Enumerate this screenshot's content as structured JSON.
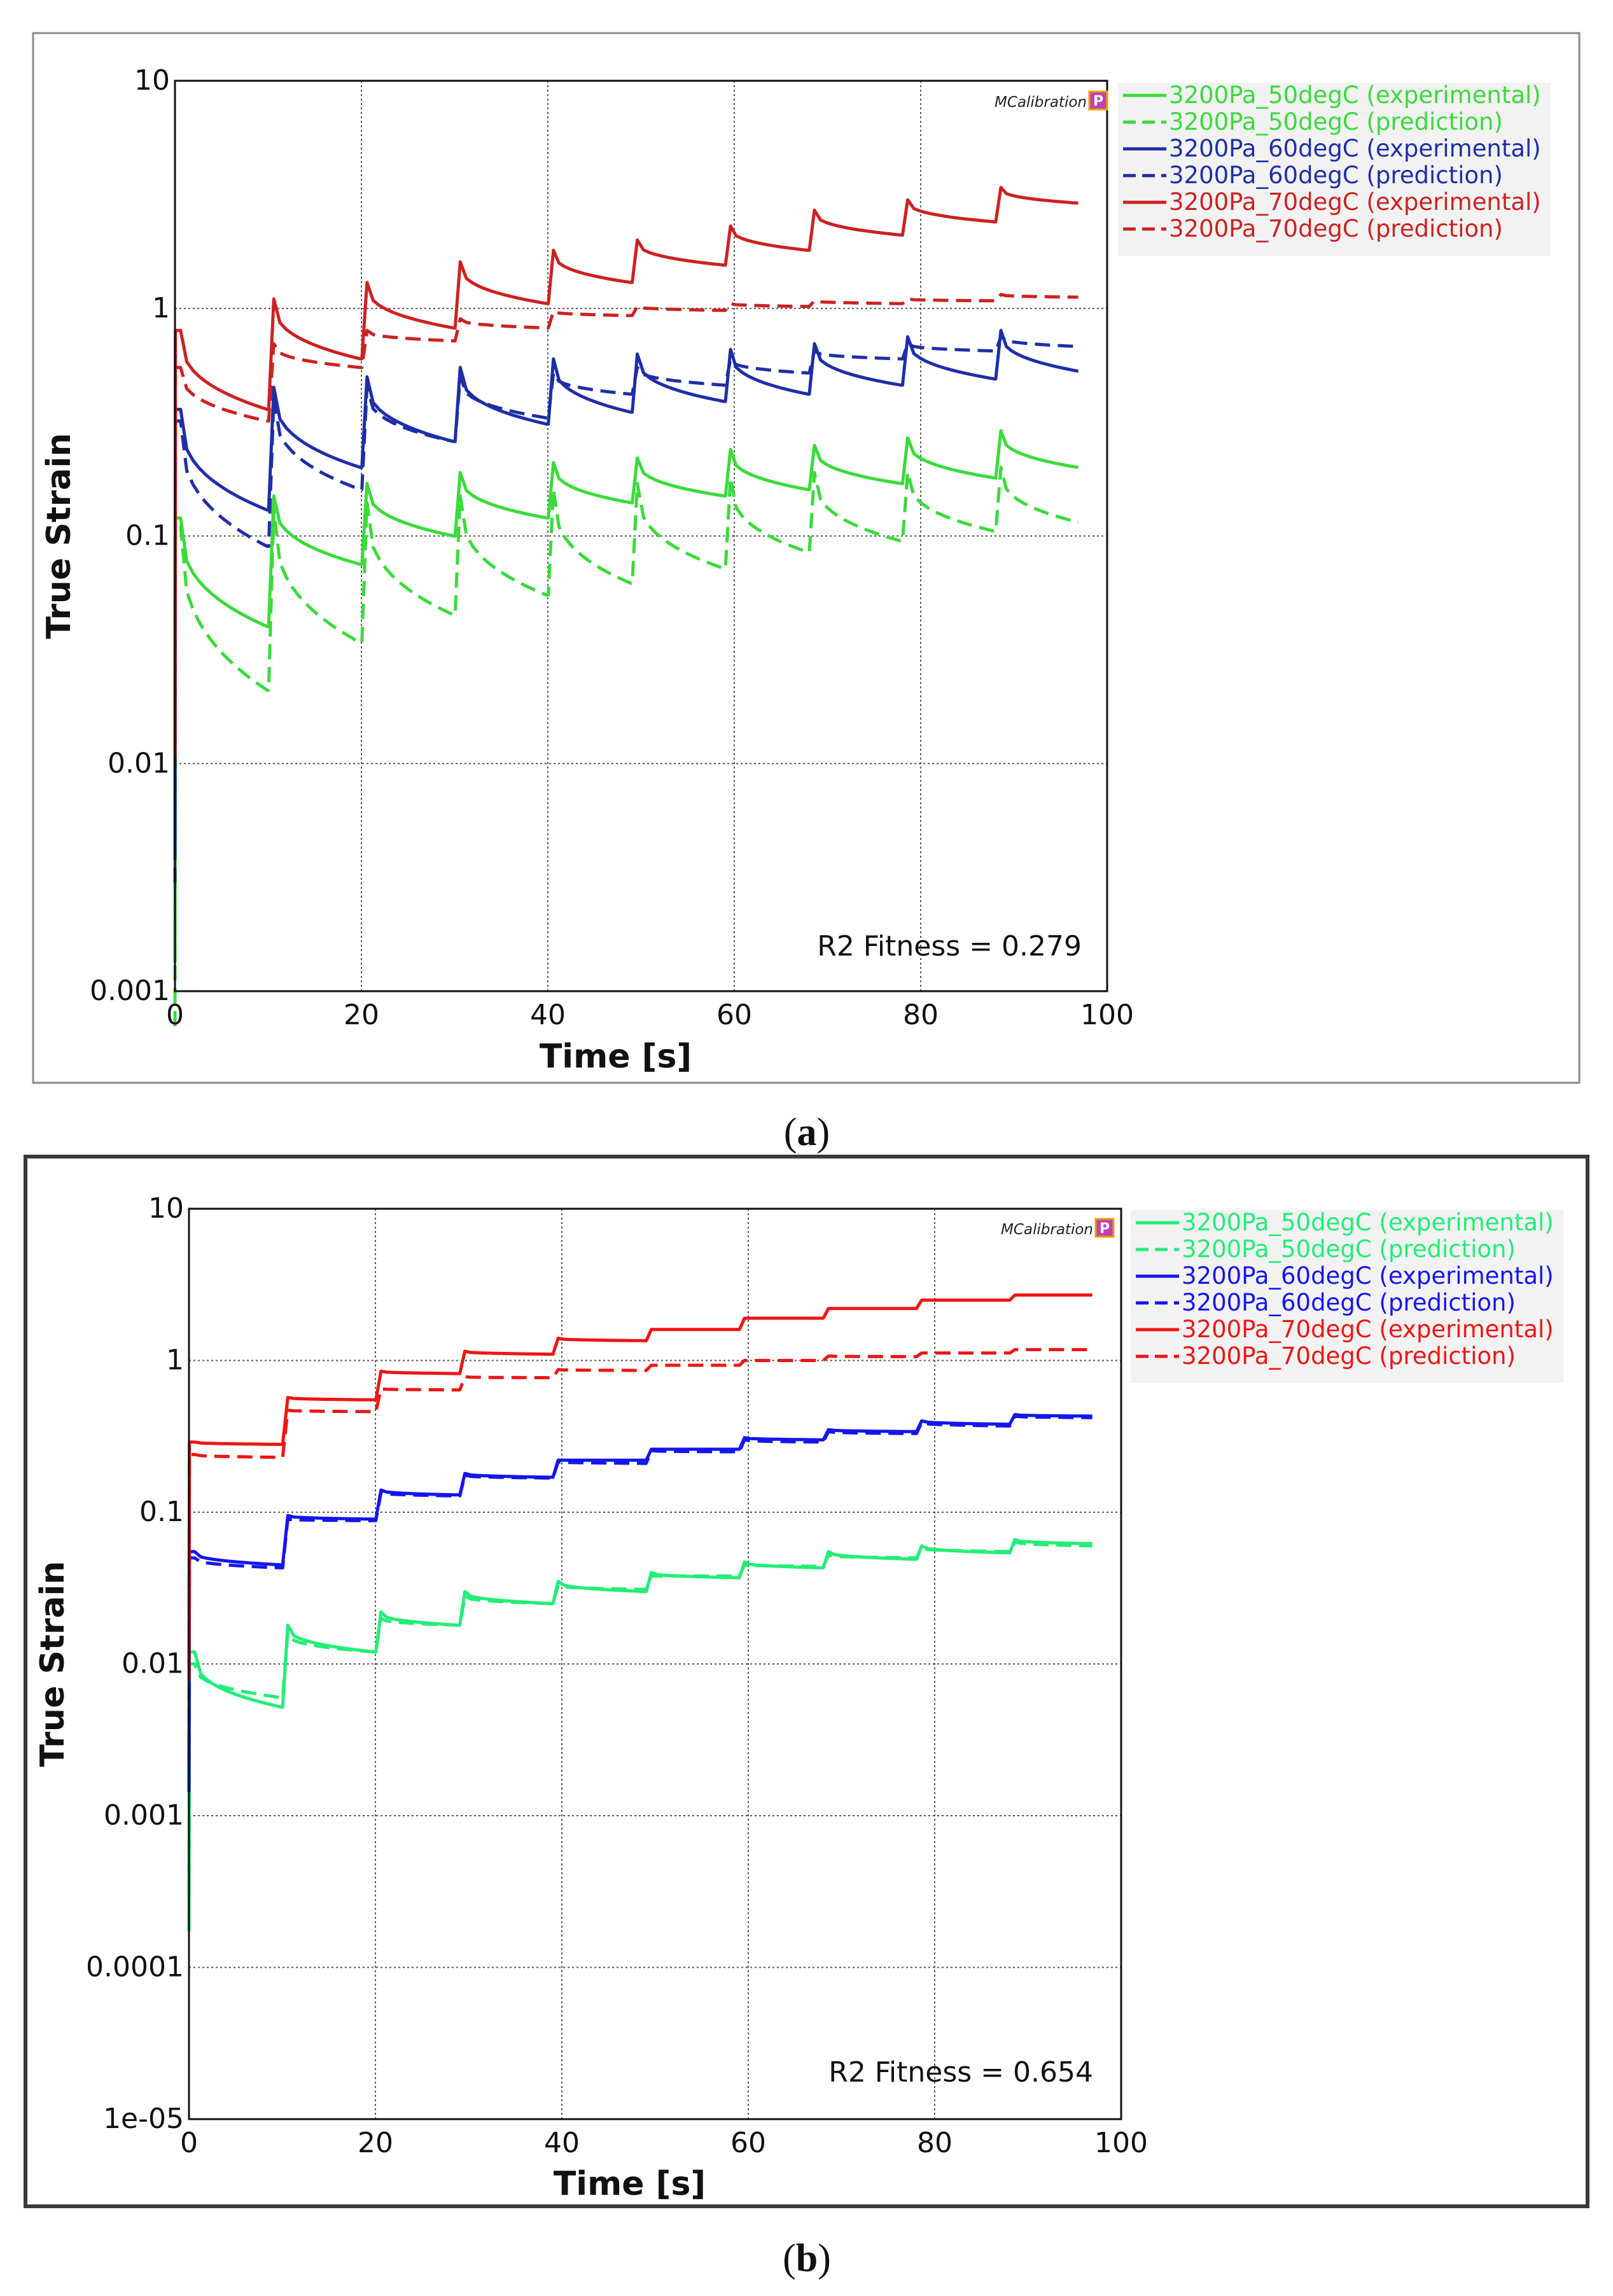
{
  "chart_data": [
    {
      "id": "a",
      "type": "line",
      "caption_label": "a",
      "xlabel": "Time [s]",
      "ylabel": "True Strain",
      "xscale": "linear",
      "yscale": "log",
      "xlim": [
        0,
        100
      ],
      "ylim": [
        0.001,
        10
      ],
      "xticks": [
        "0",
        "20",
        "40",
        "60",
        "80",
        "100"
      ],
      "yticks": [
        "0.001",
        "0.01",
        "0.1",
        "1",
        "10"
      ],
      "grid": true,
      "legend_position": "right",
      "annotation": "R2 Fitness = 0.279",
      "watermark": "MCalibration",
      "watermark_badge": "P",
      "step_times": [
        0,
        10,
        20,
        30,
        40,
        49,
        59,
        68,
        78,
        88
      ],
      "series": [
        {
          "name": "3200Pa_50degC (experimental)",
          "color": "#3adb3a",
          "dash": false,
          "peaks": [
            0.12,
            0.15,
            0.17,
            0.19,
            0.21,
            0.22,
            0.24,
            0.25,
            0.27,
            0.29
          ],
          "troughs": [
            0.04,
            0.075,
            0.1,
            0.12,
            0.14,
            0.15,
            0.16,
            0.17,
            0.18,
            0.2
          ]
        },
        {
          "name": "3200Pa_50degC (prediction)",
          "color": "#3adb3a",
          "dash": true,
          "peaks": [
            0.11,
            0.13,
            0.14,
            0.15,
            0.16,
            0.17,
            0.18,
            0.19,
            0.19,
            0.2
          ],
          "troughs": [
            0.021,
            0.034,
            0.045,
            0.055,
            0.062,
            0.072,
            0.085,
            0.095,
            0.105,
            0.115
          ]
        },
        {
          "name": "3200Pa_60degC (experimental)",
          "color": "#1f2ea8",
          "dash": false,
          "peaks": [
            0.36,
            0.45,
            0.5,
            0.55,
            0.6,
            0.63,
            0.66,
            0.7,
            0.75,
            0.8
          ],
          "troughs": [
            0.13,
            0.2,
            0.26,
            0.31,
            0.35,
            0.39,
            0.42,
            0.46,
            0.49,
            0.53
          ]
        },
        {
          "name": "3200Pa_60degC (prediction)",
          "color": "#1f2ea8",
          "dash": true,
          "peaks": [
            0.32,
            0.4,
            0.45,
            0.5,
            0.52,
            0.55,
            0.6,
            0.65,
            0.7,
            0.75
          ],
          "troughs": [
            0.09,
            0.16,
            0.26,
            0.33,
            0.42,
            0.46,
            0.52,
            0.6,
            0.65,
            0.68
          ]
        },
        {
          "name": "3200Pa_70degC (experimental)",
          "color": "#cc2222",
          "dash": false,
          "peaks": [
            0.8,
            1.1,
            1.3,
            1.6,
            1.8,
            2.0,
            2.3,
            2.7,
            3.0,
            3.4
          ],
          "troughs": [
            0.36,
            0.6,
            0.82,
            1.05,
            1.3,
            1.55,
            1.8,
            2.1,
            2.4,
            2.9
          ]
        },
        {
          "name": "3200Pa_70degC (prediction)",
          "color": "#cc2222",
          "dash": true,
          "peaks": [
            0.55,
            0.7,
            0.8,
            0.9,
            0.97,
            1.02,
            1.05,
            1.08,
            1.1,
            1.15
          ],
          "troughs": [
            0.32,
            0.55,
            0.72,
            0.82,
            0.93,
            0.98,
            1.02,
            1.05,
            1.08,
            1.12
          ]
        }
      ]
    },
    {
      "id": "b",
      "type": "line",
      "caption_label": "b",
      "xlabel": "Time [s]",
      "ylabel": "True Strain",
      "xscale": "linear",
      "yscale": "log",
      "xlim": [
        0,
        100
      ],
      "ylim": [
        1e-05,
        10
      ],
      "xticks": [
        "0",
        "20",
        "40",
        "60",
        "80",
        "100"
      ],
      "yticks": [
        "1e-05",
        "0.0001",
        "0.001",
        "0.01",
        "0.1",
        "1",
        "10"
      ],
      "grid": true,
      "legend_position": "right",
      "annotation": "R2 Fitness = 0.654",
      "watermark": "MCalibration",
      "watermark_badge": "P",
      "step_times": [
        0,
        10,
        20,
        29,
        39,
        49,
        59,
        68,
        78,
        88
      ],
      "series": [
        {
          "name": "3200Pa_50degC (experimental)",
          "color": "#22ee77",
          "dash": false,
          "peaks": [
            0.012,
            0.018,
            0.022,
            0.03,
            0.035,
            0.04,
            0.047,
            0.055,
            0.06,
            0.066
          ],
          "troughs": [
            0.0052,
            0.012,
            0.018,
            0.025,
            0.03,
            0.037,
            0.043,
            0.049,
            0.054,
            0.062
          ]
        },
        {
          "name": "3200Pa_50degC (prediction)",
          "color": "#22ee77",
          "dash": true,
          "peaks": [
            0.01,
            0.016,
            0.02,
            0.028,
            0.033,
            0.038,
            0.045,
            0.052,
            0.058,
            0.064
          ],
          "troughs": [
            0.006,
            0.012,
            0.018,
            0.025,
            0.031,
            0.038,
            0.044,
            0.05,
            0.055,
            0.06
          ]
        },
        {
          "name": "3200Pa_60degC (experimental)",
          "color": "#1515ee",
          "dash": false,
          "peaks": [
            0.055,
            0.095,
            0.14,
            0.18,
            0.22,
            0.26,
            0.31,
            0.35,
            0.4,
            0.44
          ],
          "troughs": [
            0.045,
            0.09,
            0.13,
            0.17,
            0.22,
            0.26,
            0.3,
            0.34,
            0.38,
            0.43
          ]
        },
        {
          "name": "3200Pa_60degC (prediction)",
          "color": "#1515ee",
          "dash": true,
          "peaks": [
            0.05,
            0.09,
            0.135,
            0.175,
            0.215,
            0.255,
            0.3,
            0.34,
            0.39,
            0.43
          ],
          "troughs": [
            0.043,
            0.088,
            0.128,
            0.168,
            0.21,
            0.25,
            0.29,
            0.33,
            0.37,
            0.42
          ]
        },
        {
          "name": "3200Pa_70degC (experimental)",
          "color": "#ee1515",
          "dash": false,
          "peaks": [
            0.29,
            0.57,
            0.85,
            1.15,
            1.4,
            1.6,
            1.9,
            2.2,
            2.5,
            2.7
          ],
          "troughs": [
            0.28,
            0.55,
            0.82,
            1.1,
            1.35,
            1.6,
            1.9,
            2.2,
            2.5,
            2.7
          ]
        },
        {
          "name": "3200Pa_70degC (prediction)",
          "color": "#ee1515",
          "dash": true,
          "peaks": [
            0.24,
            0.47,
            0.65,
            0.78,
            0.87,
            0.93,
            1.0,
            1.07,
            1.12,
            1.18
          ],
          "troughs": [
            0.23,
            0.46,
            0.64,
            0.77,
            0.86,
            0.93,
            1.0,
            1.06,
            1.12,
            1.18
          ]
        }
      ]
    }
  ]
}
